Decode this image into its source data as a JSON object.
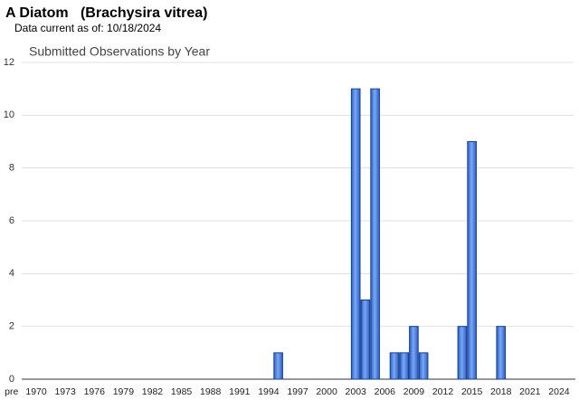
{
  "header": {
    "title": "A Diatom   (Brachysira vitrea)",
    "subtitle": "Data current as of: 10/18/2024"
  },
  "chart_data": {
    "type": "bar",
    "title": "Submitted Observations by Year",
    "categories": [
      "pre",
      "1970",
      null,
      null,
      "1973",
      null,
      null,
      "1976",
      null,
      null,
      "1979",
      null,
      null,
      "1982",
      null,
      null,
      "1985",
      null,
      null,
      "1988",
      null,
      null,
      "1991",
      null,
      null,
      "1994",
      null,
      null,
      "1997",
      null,
      null,
      "2000",
      null,
      null,
      "2003",
      null,
      null,
      "2006",
      null,
      null,
      "2009",
      null,
      null,
      "2012",
      null,
      null,
      "2015",
      null,
      null,
      "2018",
      null,
      null,
      "2021",
      null,
      null,
      "2024",
      null
    ],
    "values": [
      0,
      0,
      0,
      0,
      0,
      0,
      0,
      0,
      0,
      0,
      0,
      0,
      0,
      0,
      0,
      0,
      0,
      0,
      0,
      0,
      0,
      0,
      0,
      0,
      0,
      0,
      1,
      0,
      0,
      0,
      0,
      0,
      0,
      0,
      11,
      3,
      11,
      0,
      1,
      1,
      2,
      1,
      0,
      0,
      0,
      2,
      9,
      0,
      0,
      2,
      0,
      0,
      0,
      0,
      0,
      0,
      0
    ],
    "color": "#3a73db",
    "ylim": [
      0,
      12
    ],
    "yticks": [
      0,
      2,
      4,
      6,
      8,
      10,
      12
    ],
    "grid": true
  }
}
